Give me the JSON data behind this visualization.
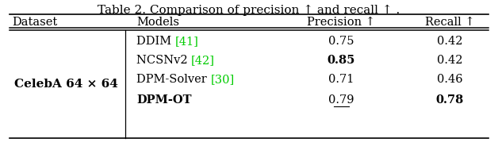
{
  "title": "Table 2. Comparison of precision ↑ and recall ↑ .",
  "dataset_label": "CelebA 64 × 64",
  "rows": [
    {
      "model": "DDIM ",
      "cite": "[41]",
      "precision": "0.75",
      "recall": "0.42",
      "precision_bold": false,
      "recall_bold": false,
      "precision_underline": false,
      "model_bold": false
    },
    {
      "model": "NCSNv2 ",
      "cite": "[42]",
      "precision": "0.85",
      "recall": "0.42",
      "precision_bold": true,
      "recall_bold": false,
      "precision_underline": false,
      "model_bold": false
    },
    {
      "model": "DPM-Solver ",
      "cite": "[30]",
      "precision": "0.71",
      "recall": "0.46",
      "precision_bold": false,
      "recall_bold": false,
      "precision_underline": false,
      "model_bold": false
    },
    {
      "model": "DPM-OT",
      "cite": "",
      "precision": "0.79",
      "recall": "0.78",
      "precision_bold": false,
      "recall_bold": true,
      "precision_underline": true,
      "model_bold": true
    }
  ],
  "cite_color": "#00cc00",
  "bg_color": "#ffffff",
  "text_color": "#000000",
  "font_size": 10.5,
  "title_font_size": 11
}
